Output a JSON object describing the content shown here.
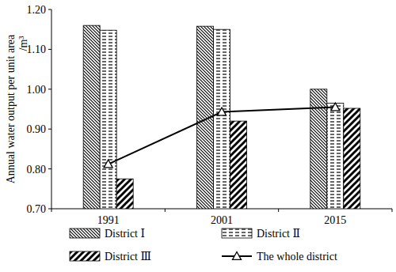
{
  "chart_data": {
    "type": "bar",
    "y_label": [
      "Annual water output per unit area",
      "/m³"
    ],
    "categories": [
      "1991",
      "2001",
      "2015"
    ],
    "series": [
      {
        "name": "District Ⅰ",
        "color": "#000000",
        "values": [
          1.16,
          1.158,
          1.0
        ]
      },
      {
        "name": "District Ⅱ",
        "color": "#000000",
        "values": [
          1.148,
          1.15,
          0.965
        ]
      },
      {
        "name": "District Ⅲ",
        "color": "#000000",
        "values": [
          0.775,
          0.92,
          0.952
        ]
      },
      {
        "name": "The whole district",
        "type": "line",
        "color": "#000000",
        "marker": "triangle",
        "line_style": "solid",
        "values": [
          0.812,
          0.943,
          0.955
        ]
      }
    ],
    "ylim": [
      0.7,
      1.2
    ],
    "yticks": [
      {
        "value": 0.7,
        "label": "0.70"
      },
      {
        "value": 0.8,
        "label": "0.80"
      },
      {
        "value": 0.9,
        "label": "0.90"
      },
      {
        "value": 1.0,
        "label": "1.00"
      },
      {
        "value": 1.1,
        "label": "1.10"
      },
      {
        "value": 1.2,
        "label": "1.20"
      }
    ],
    "grid": false,
    "legend": "bottom"
  }
}
